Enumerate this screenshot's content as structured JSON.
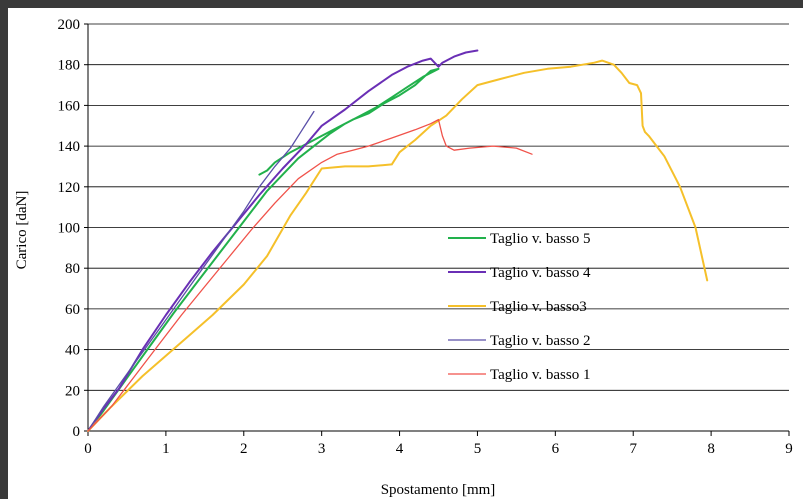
{
  "chart_data": {
    "type": "line",
    "title": "",
    "xlabel": "Spostamento  [mm]",
    "ylabel": "Carico [daN]",
    "xlim": [
      0,
      9
    ],
    "ylim": [
      0,
      200
    ],
    "x_ticks": [
      "0",
      "1",
      "2",
      "3",
      "4",
      "5",
      "6",
      "7",
      "8",
      "9"
    ],
    "y_ticks": [
      "0",
      "20",
      "40",
      "60",
      "80",
      "100",
      "120",
      "140",
      "160",
      "180",
      "200"
    ],
    "grid": "horizontal",
    "legend_position": "lower-center",
    "series": [
      {
        "name": "Taglio v. basso 5",
        "color": "#22b14c",
        "points": [
          [
            0,
            0
          ],
          [
            0.2,
            10
          ],
          [
            0.5,
            26
          ],
          [
            0.8,
            42
          ],
          [
            1.1,
            58
          ],
          [
            1.4,
            73
          ],
          [
            1.7,
            88
          ],
          [
            2.0,
            103
          ],
          [
            2.3,
            118
          ],
          [
            2.5,
            126
          ],
          [
            2.7,
            134
          ],
          [
            2.9,
            140
          ],
          [
            3.1,
            146
          ],
          [
            3.3,
            151
          ],
          [
            3.5,
            155
          ],
          [
            3.7,
            159
          ],
          [
            3.9,
            164
          ],
          [
            4.1,
            169
          ],
          [
            4.3,
            174
          ],
          [
            4.5,
            178
          ],
          [
            4.4,
            177
          ],
          [
            4.2,
            170
          ],
          [
            4.0,
            165
          ],
          [
            3.8,
            161
          ],
          [
            3.6,
            156
          ],
          [
            3.4,
            153
          ],
          [
            3.2,
            149
          ],
          [
            3.0,
            145
          ],
          [
            2.8,
            141
          ],
          [
            2.6,
            137
          ],
          [
            2.4,
            132
          ],
          [
            2.3,
            128
          ],
          [
            2.2,
            126
          ]
        ]
      },
      {
        "name": "Taglio v. basso 4",
        "color": "#6a2fb5",
        "points": [
          [
            0,
            0
          ],
          [
            0.2,
            11
          ],
          [
            0.4,
            21
          ],
          [
            0.7,
            40
          ],
          [
            1.0,
            57
          ],
          [
            1.3,
            73
          ],
          [
            1.6,
            88
          ],
          [
            1.9,
            102
          ],
          [
            2.2,
            116
          ],
          [
            2.5,
            129
          ],
          [
            2.8,
            141
          ],
          [
            3.0,
            150
          ],
          [
            3.3,
            158
          ],
          [
            3.6,
            167
          ],
          [
            3.9,
            175
          ],
          [
            4.1,
            179
          ],
          [
            4.3,
            182
          ],
          [
            4.4,
            183
          ],
          [
            4.45,
            181
          ],
          [
            4.5,
            179
          ],
          [
            4.55,
            181
          ],
          [
            4.7,
            184
          ],
          [
            4.85,
            186
          ],
          [
            5.0,
            187
          ]
        ]
      },
      {
        "name": "Taglio v. basso3",
        "color": "#f5c02a",
        "points": [
          [
            0,
            0
          ],
          [
            0.3,
            12
          ],
          [
            0.7,
            27
          ],
          [
            1.0,
            37
          ],
          [
            1.3,
            47
          ],
          [
            1.6,
            57
          ],
          [
            2.0,
            72
          ],
          [
            2.3,
            86
          ],
          [
            2.6,
            106
          ],
          [
            2.8,
            117
          ],
          [
            3.0,
            129
          ],
          [
            3.3,
            130
          ],
          [
            3.6,
            130
          ],
          [
            3.9,
            131
          ],
          [
            4.0,
            137
          ],
          [
            4.2,
            143
          ],
          [
            4.4,
            150
          ],
          [
            4.6,
            155
          ],
          [
            4.8,
            163
          ],
          [
            5.0,
            170
          ],
          [
            5.3,
            173
          ],
          [
            5.6,
            176
          ],
          [
            5.9,
            178
          ],
          [
            6.2,
            179
          ],
          [
            6.5,
            181
          ],
          [
            6.6,
            182
          ],
          [
            6.75,
            180
          ],
          [
            6.85,
            176
          ],
          [
            6.95,
            171
          ],
          [
            7.05,
            170
          ],
          [
            7.1,
            166
          ],
          [
            7.12,
            150
          ],
          [
            7.15,
            147
          ],
          [
            7.2,
            145
          ],
          [
            7.3,
            140
          ],
          [
            7.4,
            135
          ],
          [
            7.6,
            120
          ],
          [
            7.8,
            100
          ],
          [
            7.95,
            74
          ]
        ]
      },
      {
        "name": "Taglio v. basso 2",
        "color": "#5a4fa8",
        "points": [
          [
            0,
            0
          ],
          [
            0.2,
            12
          ],
          [
            0.5,
            28
          ],
          [
            0.8,
            44
          ],
          [
            1.1,
            60
          ],
          [
            1.4,
            76
          ],
          [
            1.7,
            92
          ],
          [
            2.0,
            108
          ],
          [
            2.2,
            120
          ],
          [
            2.4,
            130
          ],
          [
            2.6,
            139
          ],
          [
            2.75,
            148
          ],
          [
            2.85,
            154
          ],
          [
            2.9,
            157
          ]
        ]
      },
      {
        "name": "Taglio v. basso 1",
        "color": "#f0524a",
        "points": [
          [
            0,
            0
          ],
          [
            0.3,
            12
          ],
          [
            0.6,
            27
          ],
          [
            0.9,
            42
          ],
          [
            1.2,
            57
          ],
          [
            1.5,
            71
          ],
          [
            1.8,
            85
          ],
          [
            2.1,
            99
          ],
          [
            2.4,
            112
          ],
          [
            2.7,
            124
          ],
          [
            3.0,
            132
          ],
          [
            3.2,
            136
          ],
          [
            3.3,
            137
          ],
          [
            3.4,
            138
          ],
          [
            3.6,
            140
          ],
          [
            3.9,
            144
          ],
          [
            4.2,
            148
          ],
          [
            4.4,
            151
          ],
          [
            4.5,
            153
          ],
          [
            4.55,
            145
          ],
          [
            4.6,
            140
          ],
          [
            4.7,
            138
          ],
          [
            4.9,
            139
          ],
          [
            5.2,
            140
          ],
          [
            5.5,
            139
          ],
          [
            5.7,
            136
          ]
        ]
      }
    ]
  }
}
